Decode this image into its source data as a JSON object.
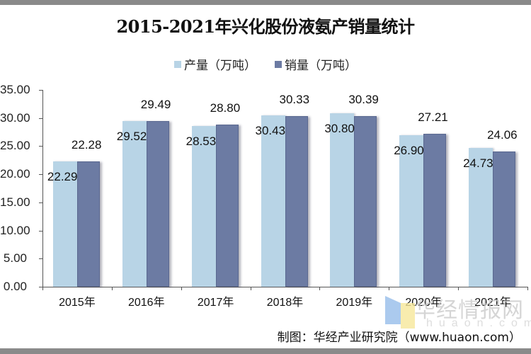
{
  "title": "2015-2021年兴化股份液氨产销量统计",
  "legend": [
    {
      "label": "产量（万吨）",
      "color": "#b8d4e6"
    },
    {
      "label": "销量（万吨）",
      "color": "#6c7ba3"
    }
  ],
  "y_ticks": [
    "35.00",
    "30.00",
    "25.00",
    "20.00",
    "15.00",
    "10.00",
    "5.00",
    "0.00"
  ],
  "x_labels": [
    "2015年",
    "2016年",
    "2017年",
    "2018年",
    "2019年",
    "2020年",
    "2021年"
  ],
  "value_labels": {
    "production": [
      "22.29",
      "29.52",
      "28.53",
      "30.43",
      "30.80",
      "26.90",
      "24.73"
    ],
    "sales": [
      "22.28",
      "29.49",
      "28.80",
      "30.33",
      "30.39",
      "27.21",
      "24.06"
    ]
  },
  "source": "制图：华经产业研究院（www.huaon.com）",
  "watermark": {
    "text": "华经情报网",
    "sub": "huaon.com"
  },
  "colors": {
    "production": "#b8d4e6",
    "sales": "#6c7ba3",
    "axis": "#555555"
  },
  "chart_data": {
    "type": "bar",
    "title": "2015-2021年兴化股份液氨产销量统计",
    "categories": [
      "2015年",
      "2016年",
      "2017年",
      "2018年",
      "2019年",
      "2020年",
      "2021年"
    ],
    "series": [
      {
        "name": "产量（万吨）",
        "values": [
          22.29,
          29.52,
          28.53,
          30.43,
          30.8,
          26.9,
          24.73
        ]
      },
      {
        "name": "销量（万吨）",
        "values": [
          22.28,
          29.49,
          28.8,
          30.33,
          30.39,
          27.21,
          24.06
        ]
      }
    ],
    "xlabel": "",
    "ylabel": "",
    "ylim": [
      0,
      35
    ],
    "yticks": [
      0,
      5,
      10,
      15,
      20,
      25,
      30,
      35
    ],
    "grid": false,
    "legend_position": "top",
    "annotations": [
      "制图：华经产业研究院（www.huaon.com）"
    ]
  }
}
